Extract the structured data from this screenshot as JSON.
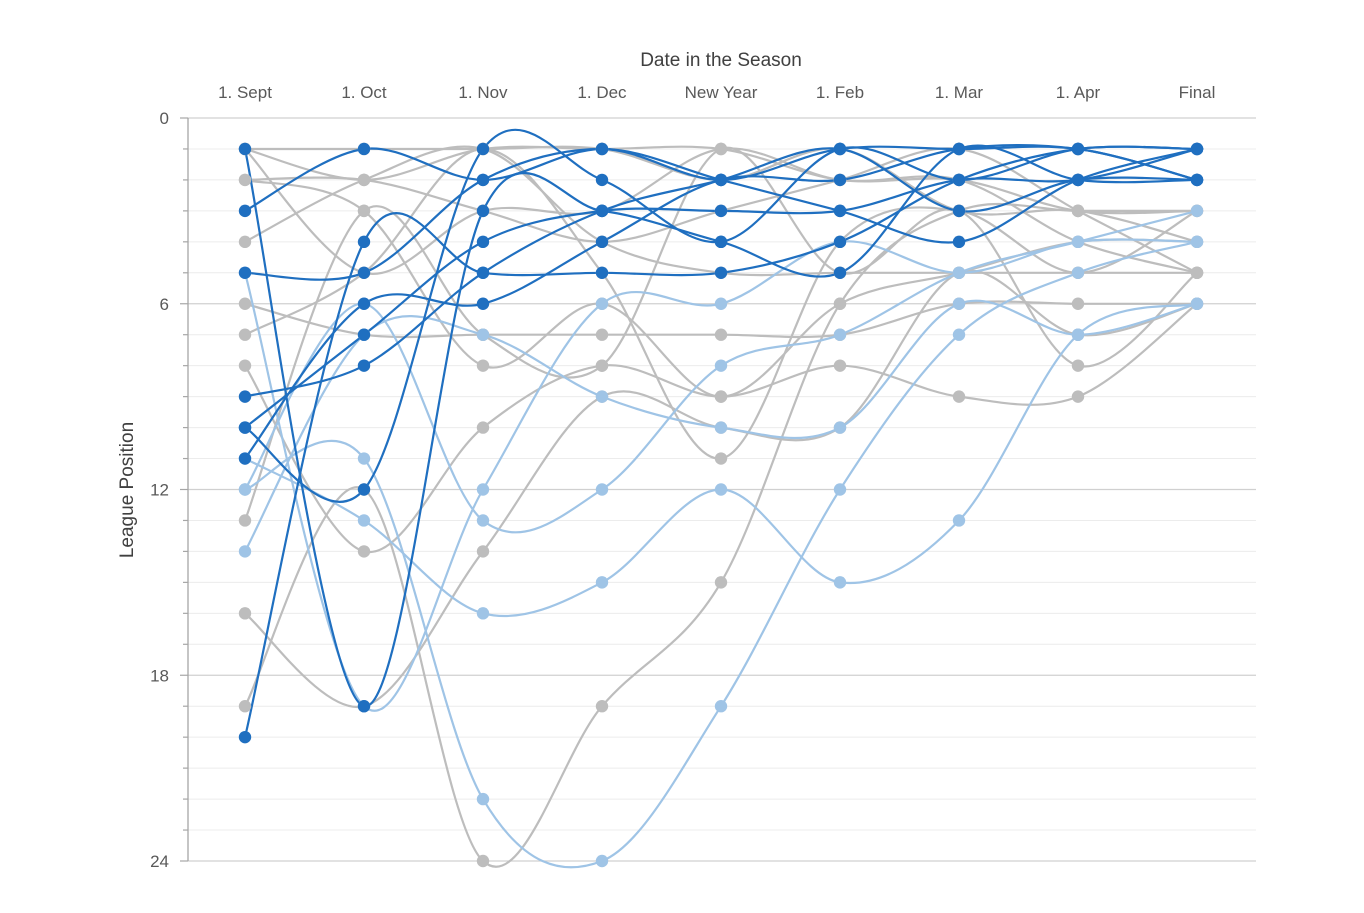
{
  "chart_data": {
    "type": "line",
    "title": "",
    "xlabel": "Date in the Season",
    "ylabel": "League Position",
    "x": [
      "1. Sept",
      "1. Oct",
      "1. Nov",
      "1. Dec",
      "New Year",
      "1. Feb",
      "1. Mar",
      "1. Apr",
      "Final"
    ],
    "yticks": [
      "0",
      "6",
      "12",
      "18",
      "24"
    ],
    "ylim": [
      0,
      24
    ],
    "y_reversed": true,
    "x_axis_position": "top",
    "grid": true,
    "legend": "none",
    "colors": {
      "dark_blue": "#1f6fc0",
      "light_blue": "#9fc4e6",
      "gray": "#bdbdbd"
    },
    "series": [
      {
        "color": "dark_blue",
        "values": [
          1,
          19,
          3,
          3,
          4,
          5,
          1,
          2,
          2
        ]
      },
      {
        "color": "dark_blue",
        "values": [
          3,
          1,
          2,
          1,
          2,
          3,
          4,
          2,
          1
        ]
      },
      {
        "color": "dark_blue",
        "values": [
          5,
          5,
          2,
          1,
          2,
          1,
          1,
          1,
          2
        ]
      },
      {
        "color": "dark_blue",
        "values": [
          10,
          12,
          1,
          2,
          4,
          1,
          2,
          1,
          1
        ]
      },
      {
        "color": "dark_blue",
        "values": [
          11,
          6,
          6,
          4,
          2,
          2,
          1,
          1,
          2
        ]
      },
      {
        "color": "dark_blue",
        "values": [
          20,
          4,
          5,
          5,
          5,
          4,
          2,
          1,
          1
        ]
      },
      {
        "color": "dark_blue",
        "values": [
          10,
          7,
          4,
          3,
          3,
          3,
          2,
          2,
          1
        ]
      },
      {
        "color": "dark_blue",
        "values": [
          9,
          8,
          5,
          3,
          2,
          1,
          3,
          2,
          2
        ]
      },
      {
        "color": "light_blue",
        "values": [
          5,
          19,
          12,
          6,
          6,
          4,
          5,
          4,
          4
        ]
      },
      {
        "color": "light_blue",
        "values": [
          12,
          6,
          13,
          12,
          8,
          7,
          5,
          4,
          3
        ]
      },
      {
        "color": "light_blue",
        "values": [
          14,
          7,
          7,
          9,
          10,
          10,
          6,
          7,
          6
        ]
      },
      {
        "color": "light_blue",
        "values": [
          11,
          13,
          16,
          15,
          12,
          15,
          13,
          7,
          6
        ]
      },
      {
        "color": "light_blue",
        "values": [
          12,
          11,
          22,
          24,
          19,
          12,
          7,
          5,
          4
        ]
      },
      {
        "color": "gray",
        "values": [
          1,
          2,
          1,
          1,
          1,
          2,
          2,
          3,
          3
        ]
      },
      {
        "color": "gray",
        "values": [
          1,
          1,
          1,
          1,
          2,
          1,
          3,
          3,
          4
        ]
      },
      {
        "color": "gray",
        "values": [
          2,
          2,
          3,
          4,
          3,
          2,
          1,
          3,
          5
        ]
      },
      {
        "color": "gray",
        "values": [
          1,
          5,
          3,
          3,
          1,
          2,
          2,
          4,
          5
        ]
      },
      {
        "color": "gray",
        "values": [
          2,
          3,
          8,
          6,
          9,
          6,
          5,
          4,
          4
        ]
      },
      {
        "color": "gray",
        "values": [
          4,
          2,
          1,
          4,
          5,
          5,
          5,
          5,
          5
        ]
      },
      {
        "color": "gray",
        "values": [
          6,
          7,
          7,
          7,
          7,
          7,
          6,
          6,
          6
        ]
      },
      {
        "color": "gray",
        "values": [
          7,
          5,
          1,
          5,
          11,
          4,
          3,
          5,
          3
        ]
      },
      {
        "color": "gray",
        "values": [
          8,
          14,
          10,
          8,
          9,
          8,
          9,
          9,
          6
        ]
      },
      {
        "color": "gray",
        "values": [
          16,
          19,
          14,
          9,
          10,
          10,
          5,
          7,
          6
        ]
      },
      {
        "color": "gray",
        "values": [
          19,
          12,
          24,
          19,
          15,
          6,
          3,
          3,
          3
        ]
      },
      {
        "color": "gray",
        "values": [
          13,
          3,
          7,
          8,
          1,
          5,
          3,
          8,
          5
        ]
      }
    ]
  }
}
